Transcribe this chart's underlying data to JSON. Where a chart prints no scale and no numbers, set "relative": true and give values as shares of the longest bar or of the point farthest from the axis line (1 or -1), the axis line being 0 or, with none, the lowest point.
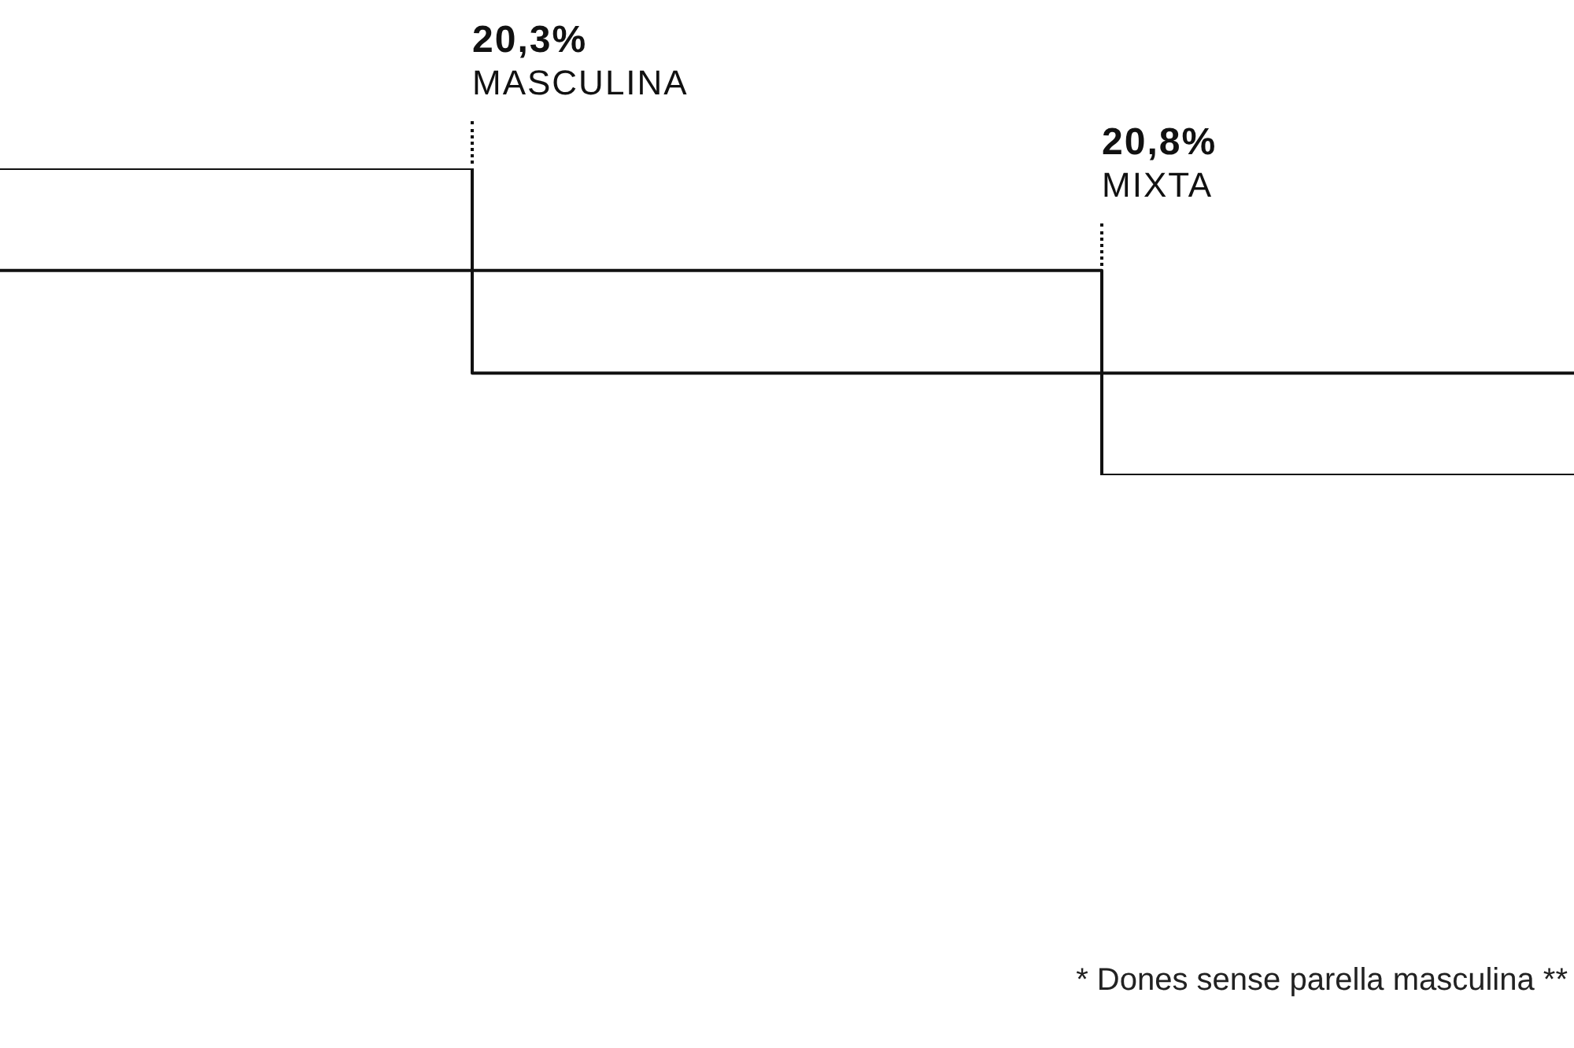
{
  "chart_data": {
    "type": "step",
    "relative": true,
    "categories": [
      null,
      null,
      null,
      null,
      null,
      null,
      null,
      null,
      null,
      null,
      null
    ],
    "series": [
      {
        "color": "#111111",
        "values": [
          1,
          1,
          1,
          0.333,
          0.333,
          0.333,
          0.333,
          0.333,
          0.333,
          0.333,
          0.333
        ]
      },
      {
        "color": "#111111",
        "values": [
          0.667,
          0.667,
          0.667,
          0.667,
          0.667,
          0.667,
          0.667,
          0,
          0,
          0,
          0
        ]
      }
    ],
    "annotations": [
      "20,3%",
      "MASCULINA",
      "20,8%",
      "MIXTA",
      "* Dones sense parella masculina **"
    ]
  }
}
